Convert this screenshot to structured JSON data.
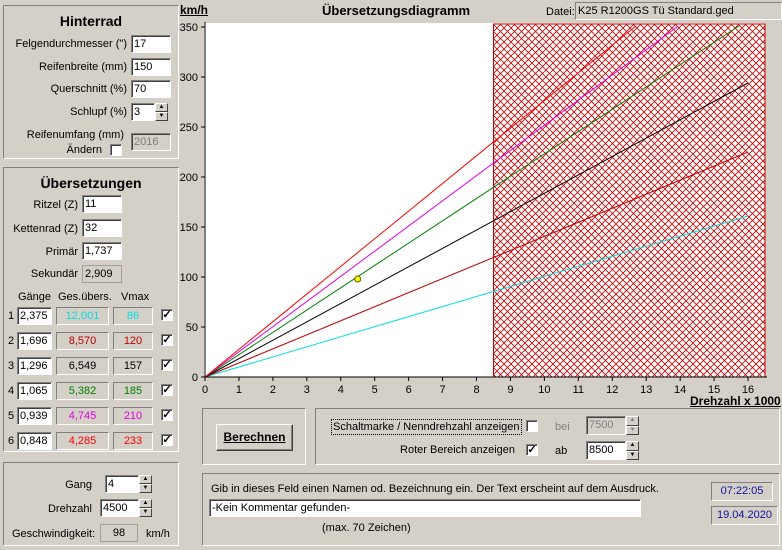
{
  "colors": {
    "gear1": "#00e0e0",
    "gear2": "#c00000",
    "gear3": "#000000",
    "gear4": "#008000",
    "gear5": "#e000e0",
    "gear6": "#ff0000",
    "red_zone": "#c00000",
    "blue_text": "#1010a0"
  },
  "hinterrad": {
    "title": "Hinterrad",
    "felge_label": "Felgendurchmesser (\")",
    "felge_value": "17",
    "breite_label": "Reifenbreite (mm)",
    "breite_value": "150",
    "querschnitt_label": "Querschnitt (%)",
    "querschnitt_value": "70",
    "schlupf_label": "Schlupf (%)",
    "schlupf_value": "3",
    "umfang_label": "Reifenumfang (mm)",
    "aendern_label": "Ändern",
    "umfang_value": "2016"
  },
  "uebersetzungen": {
    "title": "Übersetzungen",
    "ritzel_label": "Ritzel (Z)",
    "ritzel_value": "11",
    "kettenrad_label": "Kettenrad (Z)",
    "kettenrad_value": "32",
    "primaer_label": "Primär",
    "primaer_value": "1,737",
    "sekundaer_label": "Sekundär",
    "sekundaer_value": "2,909",
    "col_gaenge": "Gänge",
    "col_ges": "Ges.übers.",
    "col_vmax": "Vmax",
    "gears": [
      {
        "num": "1",
        "ratio": "2,375",
        "total": "12,001",
        "vmax": "86",
        "checked": true
      },
      {
        "num": "2",
        "ratio": "1,696",
        "total": "8,570",
        "vmax": "120",
        "checked": true
      },
      {
        "num": "3",
        "ratio": "1,296",
        "total": "6,549",
        "vmax": "157",
        "checked": true
      },
      {
        "num": "4",
        "ratio": "1,065",
        "total": "5,382",
        "vmax": "185",
        "checked": true
      },
      {
        "num": "5",
        "ratio": "0,939",
        "total": "4,745",
        "vmax": "210",
        "checked": true
      },
      {
        "num": "6",
        "ratio": "0,848",
        "total": "4,285",
        "vmax": "233",
        "checked": true
      }
    ]
  },
  "rechner": {
    "gang_label": "Gang",
    "gang_value": "4",
    "drehzahl_label": "Drehzahl",
    "drehzahl_value": "4500",
    "geschw_label": "Geschwindigkeit:",
    "geschw_value": "98",
    "geschw_unit": "km/h"
  },
  "chart_header": {
    "title": "Übersetzungsdiagramm",
    "datei_label": "Datei:",
    "datei_value": "K25 R1200GS Tü Standard.ged"
  },
  "chart_data": {
    "type": "line",
    "ylabel": "km/h",
    "xlabel": "Drehzahl x 1000",
    "xlim": [
      0,
      16.5
    ],
    "ylim": [
      0,
      350
    ],
    "xticks": [
      "0",
      "1",
      "2",
      "3",
      "4",
      "5",
      "6",
      "7",
      "8",
      "9",
      "10",
      "11",
      "12",
      "13",
      "14",
      "15",
      "16"
    ],
    "yticks": [
      "0",
      "50",
      "100",
      "150",
      "200",
      "250",
      "300",
      "350"
    ],
    "series": [
      {
        "x": [
          0,
          16
        ],
        "y": [
          0,
          161
        ]
      },
      {
        "x": [
          0,
          16
        ],
        "y": [
          0,
          225
        ]
      },
      {
        "x": [
          0,
          16
        ],
        "y": [
          0,
          294
        ]
      },
      {
        "x": [
          0,
          16
        ],
        "y": [
          0,
          357
        ]
      },
      {
        "x": [
          0,
          14.5
        ],
        "y": [
          0,
          365
        ]
      },
      {
        "x": [
          0,
          13.2
        ],
        "y": [
          0,
          365
        ]
      }
    ],
    "red_zone_from": 8.5,
    "marker": {
      "x": 4.5,
      "y": 98
    },
    "grid": false
  },
  "actions": {
    "berechnen_label": "Berechnen"
  },
  "options": {
    "schaltmarke_label": "Schaltmarke / Nenndrehzahl anzeigen",
    "schaltmarke_checked": false,
    "bei_label": "bei",
    "bei_value": "7500",
    "roter_label": "Roter Bereich anzeigen",
    "roter_checked": true,
    "ab_label": "ab",
    "ab_value": "8500"
  },
  "comment": {
    "hint": "Gib in dieses Feld einen Namen od. Bezeichnung ein. Der Text erscheint auf dem Ausdruck.",
    "value": "-Kein Kommentar gefunden-",
    "max_label": "(max. 70 Zeichen)"
  },
  "status": {
    "time": "07:22:05",
    "date": "19.04.2020"
  }
}
